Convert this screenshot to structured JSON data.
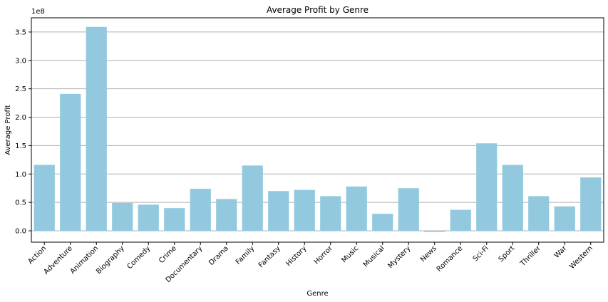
{
  "chart_data": {
    "type": "bar",
    "title": "Average Profit by Genre",
    "xlabel": "Genre",
    "ylabel": "Average Profit",
    "y_offset_label": "1e8",
    "ylim": [
      -0.2,
      3.75
    ],
    "yticks": [
      0.0,
      0.5,
      1.0,
      1.5,
      2.0,
      2.5,
      3.0,
      3.5
    ],
    "ytick_labels": [
      "0.0",
      "0.5",
      "1.0",
      "1.5",
      "2.0",
      "2.5",
      "3.0",
      "3.5"
    ],
    "categories": [
      "Action",
      "Adventure",
      "Animation",
      "Biography",
      "Comedy",
      "Crime",
      "Documentary",
      "Drama",
      "Family",
      "Fantasy",
      "History",
      "Horror",
      "Music",
      "Musical",
      "Mystery",
      "News",
      "Romance",
      "Sci-Fi",
      "Sport",
      "Thriller",
      "War",
      "Western"
    ],
    "values": [
      1.16,
      2.41,
      3.59,
      0.49,
      0.46,
      0.4,
      0.74,
      0.56,
      1.15,
      0.7,
      0.72,
      0.61,
      0.78,
      0.3,
      0.75,
      -0.02,
      0.37,
      1.54,
      1.16,
      0.61,
      0.43,
      0.94
    ],
    "value_scale": 100000000,
    "grid": "y",
    "bar_color": "#92c9df",
    "grid_color": "#b0b0b0",
    "legend": "none"
  }
}
